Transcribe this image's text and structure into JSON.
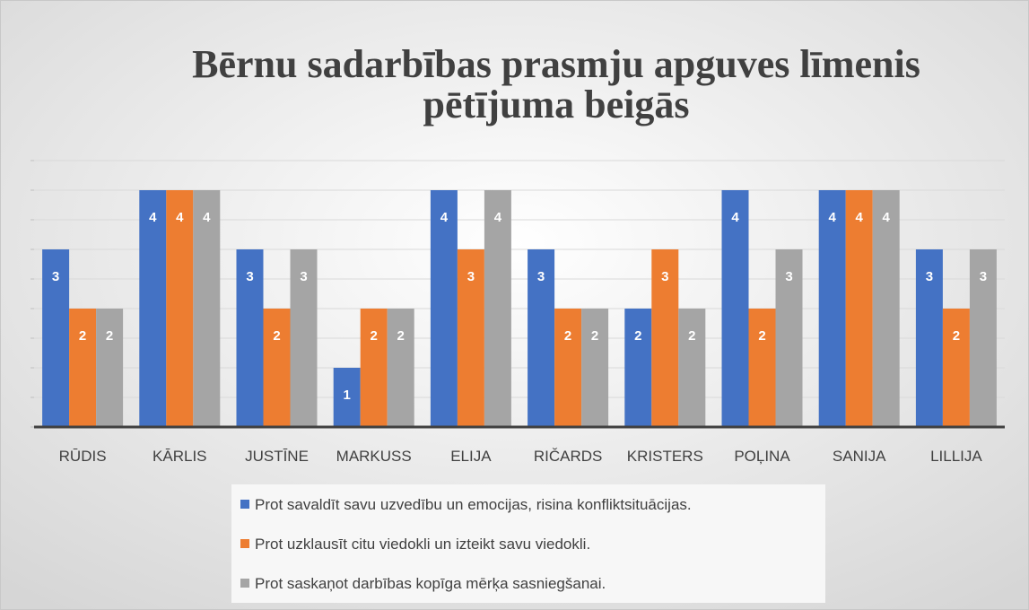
{
  "chart_data": {
    "type": "bar",
    "title": "Bērnu sadarbības prasmju apguves līmenis",
    "subtitle": "pētījuma beigās",
    "categories": [
      "RŪDIS",
      "KĀRLIS",
      "JUSTĪNE",
      "MARKUSS",
      "ELIJA",
      "RIČARDS",
      "KRISTERS",
      "POĻINA",
      "SANIJA",
      "LILLIJA"
    ],
    "series": [
      {
        "name": "Prot savaldīt savu uzvedību un emocijas, risina konfliktsituācijas.",
        "color": "#4472c4",
        "values": [
          3,
          4,
          3,
          1,
          4,
          3,
          2,
          4,
          4,
          3
        ]
      },
      {
        "name": "Prot uzklausīt citu viedokli un izteikt savu viedokli.",
        "color": "#ed7d31",
        "values": [
          2,
          4,
          2,
          2,
          3,
          2,
          3,
          2,
          4,
          2
        ]
      },
      {
        "name": "Prot saskaņot darbības kopīga mērķa sasniegšanai.",
        "color": "#a5a5a5",
        "values": [
          2,
          4,
          3,
          2,
          4,
          2,
          2,
          3,
          4,
          3
        ]
      }
    ],
    "ylim": [
      0,
      4.5
    ],
    "yticks": [
      0,
      0.5,
      1,
      1.5,
      2,
      2.5,
      3,
      3.5,
      4,
      4.5
    ],
    "grid": true
  }
}
